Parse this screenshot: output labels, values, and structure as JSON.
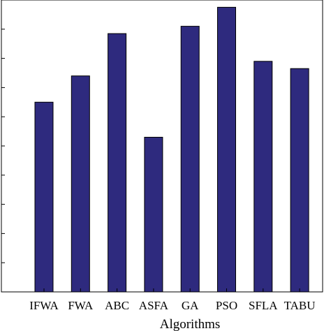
{
  "chart_data": {
    "type": "bar",
    "categories": [
      "IFWA",
      "FWA",
      "ABC",
      "ASFA",
      "GA",
      "PSO",
      "SFLA",
      "TABU"
    ],
    "values": [
      0.65,
      0.74,
      0.885,
      0.53,
      0.91,
      0.975,
      0.79,
      0.765
    ],
    "xlabel": "Algorithms",
    "ylim": [
      0,
      1
    ],
    "bar_color": "#2e2a7e",
    "grid": false
  }
}
